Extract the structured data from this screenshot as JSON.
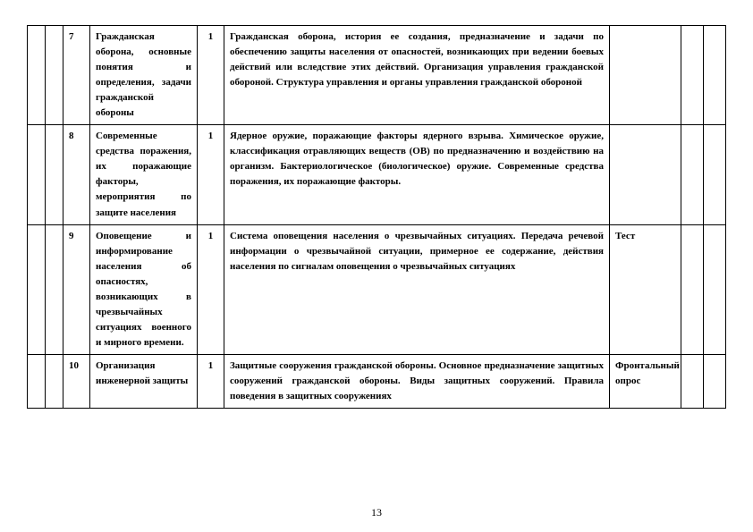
{
  "page_number": "13",
  "rows": [
    {
      "num": "7",
      "topic": "Гражданская оборона, основные понятия и определения, задачи гражданской обороны",
      "hours": "1",
      "content": "Гражданская оборона, история ее создания, предназначение и задачи по обеспечению защиты населения от опасностей, возникающих при ведении боевых действий или вследствие этих действий. Организация управления гражданской обороной. Структура управления и органы управления гражданской обороной",
      "control": ""
    },
    {
      "num": "8",
      "topic": "Современные средства поражения, их поражающие факторы, мероприятия по защите населения",
      "hours": "1",
      "content": "Ядерное оружие, поражающие факторы ядерного взрыва. Химическое оружие, классификация отравляющих веществ (ОВ) по предназначению и воздействию на организм. Бактериологическое (биологическое) оружие. Современные средства поражения, их поражающие факторы.",
      "control": ""
    },
    {
      "num": "9",
      "topic": "Оповещение и информирование населения об опасностях, возникающих в чрезвычайных ситуациях военного и мирного времени.",
      "hours": "1",
      "content": "Система оповещения населения о чрезвычайных ситуациях. Передача речевой информации о чрезвычайной ситуации, примерное ее содержание, действия населения по сигналам оповещения о чрезвычайных ситуациях",
      "control": "Тест"
    },
    {
      "num": "10",
      "topic": "Организация инженерной защиты",
      "hours": "1",
      "content": "Защитные сооружения гражданской обороны. Основное предназначение защитных сооружений гражданской обороны. Виды защитных сооружений. Правила поведения в защитных сооружениях",
      "control": "Фронтальный опрос"
    }
  ]
}
